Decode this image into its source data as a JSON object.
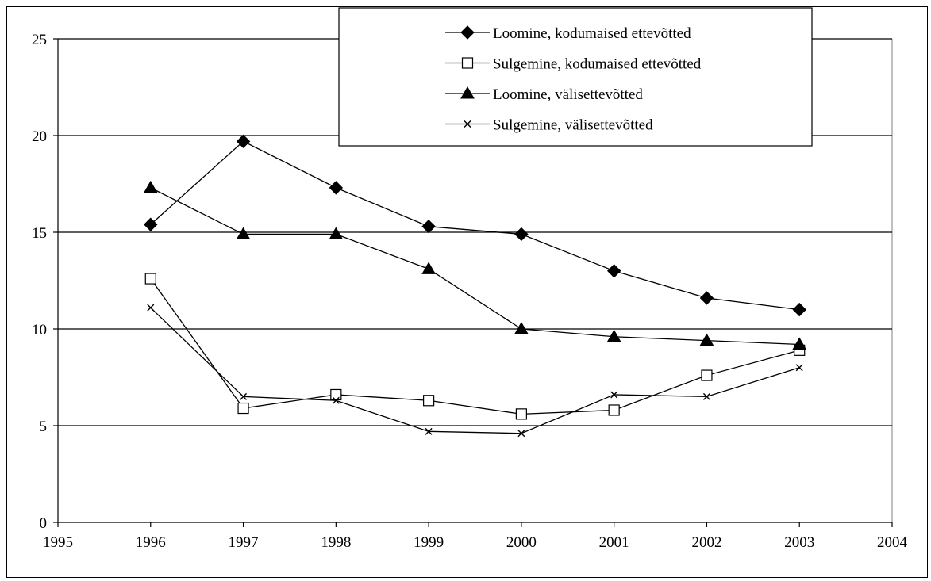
{
  "chart_data": {
    "type": "line",
    "title": "",
    "xlabel": "",
    "ylabel": "",
    "xlim": [
      1995,
      2004
    ],
    "ylim": [
      0,
      25
    ],
    "x_ticks": [
      1995,
      1996,
      1997,
      1998,
      1999,
      2000,
      2001,
      2002,
      2003,
      2004
    ],
    "y_ticks": [
      0,
      5,
      10,
      15,
      20,
      25
    ],
    "grid": "horizontal",
    "legend_position": "top-right",
    "x": [
      1996,
      1997,
      1998,
      1999,
      2000,
      2001,
      2002,
      2003
    ],
    "series": [
      {
        "name": "Loomine, kodumaised ettevõtted",
        "marker": "diamond-filled",
        "values": [
          15.4,
          19.7,
          17.3,
          15.3,
          14.9,
          13.0,
          11.6,
          11.0
        ]
      },
      {
        "name": "Sulgemine, kodumaised ettevõtted",
        "marker": "square-open",
        "values": [
          12.6,
          5.9,
          6.6,
          6.3,
          5.6,
          5.8,
          7.6,
          8.9
        ]
      },
      {
        "name": "Loomine, välisettevõtted",
        "marker": "triangle-filled",
        "values": [
          17.3,
          14.9,
          14.9,
          13.1,
          10.0,
          9.6,
          9.4,
          9.2
        ]
      },
      {
        "name": "Sulgemine, välisettevõtted",
        "marker": "x",
        "values": [
          11.1,
          6.5,
          6.3,
          4.7,
          4.6,
          6.6,
          6.5,
          8.0
        ]
      }
    ]
  }
}
